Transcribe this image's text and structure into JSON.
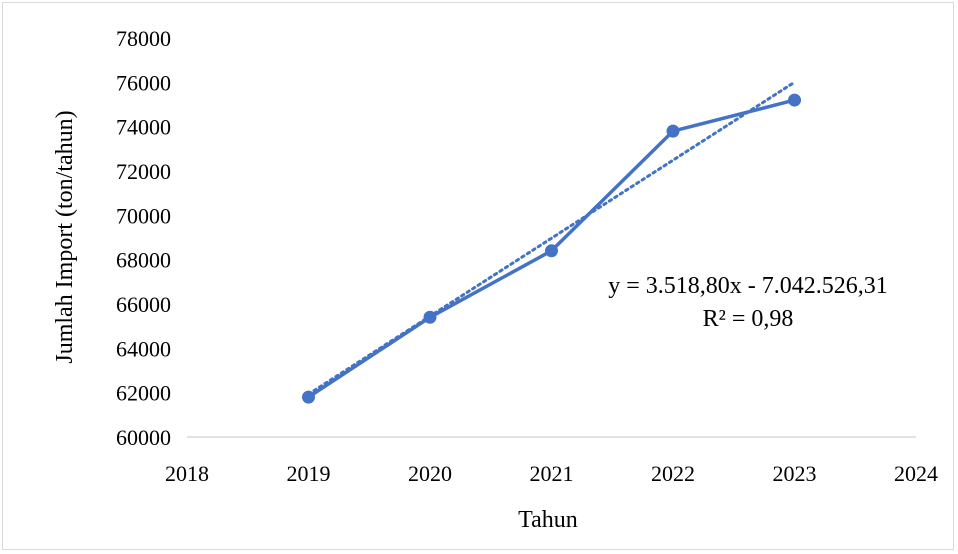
{
  "chart_data": {
    "type": "line",
    "title": "",
    "xlabel": "Tahun",
    "ylabel": "Jumlah Import (ton/tahun)",
    "xlim": [
      2018,
      2024
    ],
    "ylim": [
      60000,
      78000
    ],
    "x_ticks": [
      "2018",
      "2019",
      "2020",
      "2021",
      "2022",
      "2023",
      "2024"
    ],
    "y_ticks": [
      "60000",
      "62000",
      "64000",
      "66000",
      "68000",
      "70000",
      "72000",
      "74000",
      "76000",
      "78000"
    ],
    "grid": false,
    "series": [
      {
        "x": [
          2019,
          2020,
          2021,
          2022,
          2023
        ],
        "values": [
          61800,
          65400,
          68400,
          73800,
          75200
        ],
        "color": "#4472c4"
      }
    ],
    "trendline": {
      "type": "linear",
      "slope": 3518.8,
      "intercept": -7042526.31,
      "x_range": [
        2019,
        2023
      ],
      "color": "#4472c4",
      "style": "dotted",
      "equation_label": "y = 3.518,80x - 7.042.526,31",
      "r2_label": "R² = 0,98"
    }
  }
}
